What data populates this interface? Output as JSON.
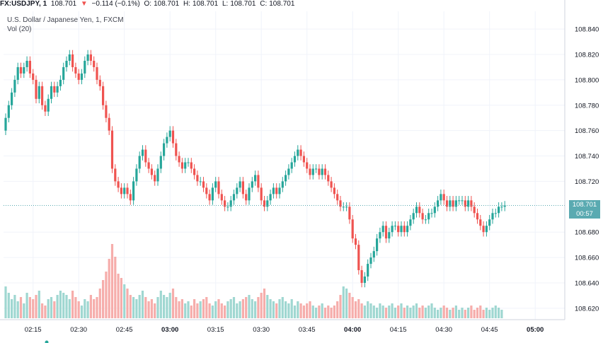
{
  "header": {
    "symbol": "FX:USDJPY, 1",
    "last": "108.701",
    "change": "−0.114 (−0.1%)",
    "o_label": "O:",
    "o_value": "108.701",
    "h_label": "H:",
    "h_value": "108.701",
    "l_label": "L:",
    "l_value": "108.701",
    "c_label": "C:",
    "c_value": "108.701"
  },
  "legend": {
    "title": "U.S. Dollar / Japanese Yen, 1, FXCM",
    "vol": "Vol (20)"
  },
  "price_tag": {
    "price": "108.701",
    "countdown": "00:57"
  },
  "colors": {
    "up": "#26a69a",
    "down": "#ef5350",
    "up_vol": "#9fd7d1",
    "down_vol": "#f6adab",
    "price_line": "#5aaab1"
  },
  "chart_data": {
    "type": "candlestick",
    "title": "U.S. Dollar / Japanese Yen, 1, FXCM",
    "y_ticks": [
      "108.840",
      "108.820",
      "108.800",
      "108.780",
      "108.760",
      "108.740",
      "108.720",
      "108.680",
      "108.660",
      "108.640",
      "108.620"
    ],
    "ylim": [
      108.611,
      108.854
    ],
    "x_ticks": [
      {
        "label": "02:15",
        "index": 9
      },
      {
        "label": "02:30",
        "index": 24
      },
      {
        "label": "02:45",
        "index": 39
      },
      {
        "label": "03:00",
        "index": 54
      },
      {
        "label": "03:15",
        "index": 69
      },
      {
        "label": "03:30",
        "index": 84
      },
      {
        "label": "03:45",
        "index": 99
      },
      {
        "label": "04:00",
        "index": 114
      },
      {
        "label": "04:15",
        "index": 129
      },
      {
        "label": "04:30",
        "index": 144
      },
      {
        "label": "04:45",
        "index": 159
      },
      {
        "label": "05:00",
        "index": 174
      }
    ],
    "last_price": 108.701,
    "volume_max": 70,
    "closes": [
      108.77,
      108.78,
      108.79,
      108.8,
      108.81,
      108.805,
      108.81,
      108.815,
      108.805,
      108.8,
      108.785,
      108.795,
      108.78,
      108.775,
      108.785,
      108.795,
      108.79,
      108.795,
      108.8,
      108.81,
      108.815,
      108.82,
      108.81,
      108.805,
      108.8,
      108.805,
      108.815,
      108.82,
      108.815,
      108.81,
      108.8,
      108.795,
      108.78,
      108.77,
      108.76,
      108.73,
      108.72,
      108.715,
      108.71,
      108.715,
      108.71,
      108.705,
      108.72,
      108.73,
      108.74,
      108.745,
      108.735,
      108.73,
      108.725,
      108.72,
      108.73,
      108.74,
      108.75,
      108.755,
      108.76,
      108.75,
      108.74,
      108.735,
      108.73,
      108.735,
      108.735,
      108.73,
      108.725,
      108.72,
      108.72,
      108.715,
      108.71,
      108.705,
      108.715,
      108.72,
      108.71,
      108.705,
      108.7,
      108.7,
      108.705,
      108.71,
      108.715,
      108.72,
      108.71,
      108.705,
      108.715,
      108.72,
      108.725,
      108.715,
      108.705,
      108.7,
      108.705,
      108.71,
      108.715,
      108.71,
      108.715,
      108.72,
      108.725,
      108.73,
      108.735,
      108.74,
      108.745,
      108.74,
      108.735,
      108.73,
      108.725,
      108.73,
      108.73,
      108.725,
      108.73,
      108.725,
      108.72,
      108.715,
      108.71,
      108.705,
      108.7,
      108.7,
      108.7,
      108.69,
      108.675,
      108.67,
      108.65,
      108.64,
      108.645,
      108.655,
      108.66,
      108.665,
      108.675,
      108.68,
      108.685,
      108.675,
      108.68,
      108.685,
      108.685,
      108.68,
      108.685,
      108.68,
      108.685,
      108.69,
      108.695,
      108.7,
      108.695,
      108.69,
      108.69,
      108.695,
      108.695,
      108.7,
      108.705,
      108.71,
      108.705,
      108.7,
      108.705,
      108.7,
      108.705,
      108.705,
      108.705,
      108.7,
      108.705,
      108.7,
      108.695,
      108.69,
      108.685,
      108.68,
      108.685,
      108.69,
      108.695,
      108.695,
      108.7,
      108.7,
      108.701
    ],
    "volumes": [
      30,
      24,
      18,
      22,
      16,
      20,
      14,
      24,
      20,
      18,
      22,
      26,
      14,
      12,
      18,
      20,
      16,
      22,
      26,
      24,
      22,
      18,
      26,
      20,
      16,
      12,
      18,
      16,
      22,
      18,
      20,
      28,
      36,
      44,
      56,
      70,
      58,
      42,
      38,
      32,
      28,
      22,
      20,
      18,
      22,
      26,
      20,
      16,
      18,
      14,
      20,
      26,
      22,
      20,
      24,
      28,
      20,
      16,
      18,
      14,
      16,
      12,
      18,
      14,
      16,
      18,
      20,
      14,
      12,
      16,
      18,
      14,
      12,
      16,
      18,
      20,
      14,
      16,
      18,
      20,
      22,
      18,
      16,
      20,
      24,
      28,
      22,
      18,
      16,
      14,
      18,
      20,
      16,
      14,
      18,
      12,
      16,
      14,
      12,
      14,
      16,
      12,
      10,
      12,
      14,
      10,
      12,
      10,
      12,
      16,
      22,
      30,
      28,
      24,
      20,
      16,
      18,
      14,
      12,
      16,
      14,
      12,
      10,
      14,
      12,
      10,
      12,
      14,
      10,
      12,
      14,
      10,
      12,
      10,
      12,
      14,
      10,
      12,
      10,
      12,
      14,
      10,
      8,
      10,
      12,
      10,
      8,
      10,
      12,
      8,
      10,
      8,
      10,
      12,
      8,
      10,
      12,
      8,
      10,
      8,
      10,
      12,
      10,
      8
    ]
  }
}
